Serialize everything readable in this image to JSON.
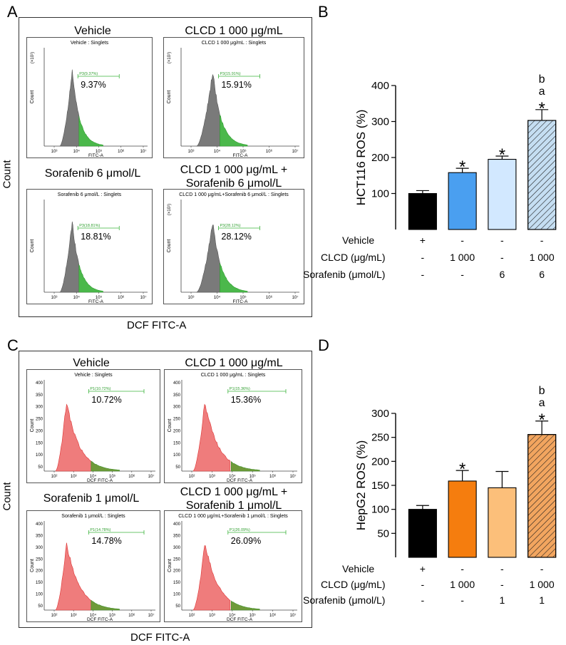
{
  "panels": {
    "A": {
      "label": "A",
      "y_title": "Count",
      "x_title": "DCF FITC-A",
      "plots": [
        {
          "title": "Vehicle",
          "subtitle": "Vehicle : Singlets",
          "gate": "P3(9.37%)",
          "value": "9.37%",
          "scale": "(×10¹)",
          "xaxis": "FITC-A",
          "ylabel": "Count"
        },
        {
          "title": "CLCD 1 000 μg/mL",
          "subtitle": "CLCD 1 000 μg/mL : Singlets",
          "gate": "P3(15.91%)",
          "value": "15.91%",
          "scale": "(×10¹)",
          "xaxis": "FITC-A",
          "ylabel": "Count"
        },
        {
          "title": "Sorafenib 6 μmol/L",
          "subtitle": "Sorafenib 6 μmol/L : Singlets",
          "gate": "P3(18.81%)",
          "value": "18.81%",
          "scale": "",
          "xaxis": "FITC-A",
          "ylabel": "Count"
        },
        {
          "title": "CLCD 1 000 μg/mL + Sorafenib 6 μmol/L",
          "title_line1": "CLCD 1 000 μg/mL +",
          "title_line2": "Sorafenib 6 μmol/L",
          "subtitle": "CLCD 1 000 μg/mL+Sorafenib 6 μmol/L : Singlets",
          "gate": "P3(28.12%)",
          "value": "28.12%",
          "scale": "(×10¹)",
          "xaxis": "FITC-A",
          "ylabel": "Count"
        }
      ],
      "ticks": [
        "10³",
        "10⁴",
        "10⁵",
        "10⁶",
        "10⁷"
      ]
    },
    "C": {
      "label": "C",
      "y_title": "Count",
      "x_title": "DCF FITC-A",
      "plots": [
        {
          "title": "Vehicle",
          "subtitle": "Vehicle : Singlets",
          "gate": "P1(10.72%)",
          "value": "10.72%",
          "xaxis": "DCF FITC-A",
          "ylabel": "Count"
        },
        {
          "title": "CLCD 1 000 μg/mL",
          "subtitle": "CLCD 1 000 μg/mL : Singlets",
          "gate": "P1(15.36%)",
          "value": "15.36%",
          "xaxis": "DCF FITC-A",
          "ylabel": "Count"
        },
        {
          "title": "Sorafenib 1 μmol/L",
          "subtitle": "Sorafenib 1 μmol/L : Singlets",
          "gate": "P1(14.78%)",
          "value": "14.78%",
          "xaxis": "DCF FITC-A",
          "ylabel": "Count"
        },
        {
          "title": "CLCD 1 000 μg/mL + Sorafenib 1 μmol/L",
          "title_line1": "CLCD 1 000 μg/mL +",
          "title_line2": "Sorafenib 1 μmol/L",
          "subtitle": "CLCD 1 000 μg/mL+Sorafenib 1 μmol/L : Singlets",
          "gate": "P1(26.09%)",
          "value": "26.09%",
          "xaxis": "DCF FITC-A",
          "ylabel": "Count"
        }
      ],
      "yticks": [
        "400",
        "350",
        "300",
        "250",
        "200",
        "150",
        "100",
        "50"
      ],
      "ticks": [
        "10²",
        "10³",
        "10⁴",
        "10⁵",
        "10⁶",
        "10⁷"
      ]
    },
    "B": {
      "label": "B",
      "row_labels": [
        "Vehicle",
        "CLCD (μg/mL)",
        "Sorafenib (μmol/L)"
      ],
      "rows": [
        [
          "+",
          "-",
          "-",
          "-"
        ],
        [
          "-",
          "1 000",
          "-",
          "1 000"
        ],
        [
          "-",
          "-",
          "6",
          "6"
        ]
      ]
    },
    "D": {
      "label": "D",
      "row_labels": [
        "Vehicle",
        "CLCD (μg/mL)",
        "Sorafenib (μmol/L)"
      ],
      "rows": [
        [
          "+",
          "-",
          "-",
          "-"
        ],
        [
          "-",
          "1 000",
          "-",
          "1 000"
        ],
        [
          "-",
          "-",
          "1",
          "1"
        ]
      ]
    }
  },
  "chart_data": [
    {
      "type": "bar",
      "panel": "B",
      "ylabel": "HCT116 ROS (%)",
      "categories": [
        "Vehicle",
        "CLCD 1 000",
        "Sorafenib 6",
        "CLCD 1 000 + Sorafenib 6"
      ],
      "values": [
        100,
        158,
        195,
        303
      ],
      "errors": [
        8,
        12,
        9,
        30
      ],
      "annotations": [
        [],
        [
          "*"
        ],
        [
          "*"
        ],
        [
          "*",
          "a",
          "b"
        ]
      ],
      "colors": [
        "#000000",
        "#4a9ff0",
        "#d2e8ff",
        "#c5def2"
      ],
      "hatched": [
        false,
        false,
        false,
        true
      ],
      "ylim": [
        0,
        400
      ],
      "yticks": [
        100,
        200,
        300,
        400
      ]
    },
    {
      "type": "bar",
      "panel": "D",
      "ylabel": "HepG2 ROS (%)",
      "categories": [
        "Vehicle",
        "CLCD 1 000",
        "Sorafenib 1",
        "CLCD 1 000 + Sorafenib 1"
      ],
      "values": [
        100,
        159,
        145,
        256
      ],
      "errors": [
        8,
        22,
        34,
        28
      ],
      "annotations": [
        [],
        [
          "*"
        ],
        [],
        [
          "*",
          "a",
          "b"
        ]
      ],
      "colors": [
        "#000000",
        "#f57d0e",
        "#fcbf7a",
        "#f2a55f"
      ],
      "hatched": [
        false,
        false,
        false,
        true
      ],
      "ylim": [
        0,
        300
      ],
      "yticks": [
        50,
        100,
        150,
        200,
        250,
        300
      ]
    }
  ]
}
